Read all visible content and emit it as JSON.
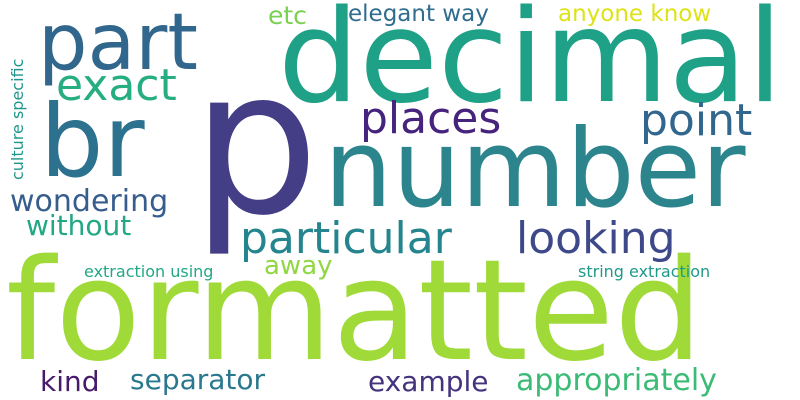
{
  "words": [
    {
      "text": "p",
      "color": "#433e85",
      "orientation": "horizontal"
    },
    {
      "text": "decimal",
      "color": "#1fa187",
      "orientation": "horizontal"
    },
    {
      "text": "formatted",
      "color": "#a0da39",
      "orientation": "horizontal"
    },
    {
      "text": "number",
      "color": "#2c858d",
      "orientation": "horizontal"
    },
    {
      "text": "br",
      "color": "#2c728e",
      "orientation": "horizontal"
    },
    {
      "text": "part",
      "color": "#31668d",
      "orientation": "horizontal"
    },
    {
      "text": "exact",
      "color": "#26ad81",
      "orientation": "horizontal"
    },
    {
      "text": "places",
      "color": "#46247e",
      "orientation": "horizontal"
    },
    {
      "text": "point",
      "color": "#31678e",
      "orientation": "horizontal"
    },
    {
      "text": "particular",
      "color": "#25858e",
      "orientation": "horizontal"
    },
    {
      "text": "looking",
      "color": "#3e4989",
      "orientation": "horizontal"
    },
    {
      "text": "wondering",
      "color": "#365d8d",
      "orientation": "horizontal"
    },
    {
      "text": "without",
      "color": "#22a884",
      "orientation": "horizontal"
    },
    {
      "text": "away",
      "color": "#90d743",
      "orientation": "horizontal"
    },
    {
      "text": "etc",
      "color": "#7ad151",
      "orientation": "horizontal"
    },
    {
      "text": "elegant way",
      "color": "#2f6c8e",
      "orientation": "horizontal"
    },
    {
      "text": "anyone know",
      "color": "#dde318",
      "orientation": "horizontal"
    },
    {
      "text": "culture specific",
      "color": "#1f968b",
      "orientation": "vertical"
    },
    {
      "text": "extraction using",
      "color": "#22a884",
      "orientation": "horizontal"
    },
    {
      "text": "string extraction",
      "color": "#1f9a8a",
      "orientation": "horizontal"
    },
    {
      "text": "kind",
      "color": "#481a6c",
      "orientation": "horizontal"
    },
    {
      "text": "separator",
      "color": "#2a788e",
      "orientation": "horizontal"
    },
    {
      "text": "example",
      "color": "#46337e",
      "orientation": "horizontal"
    },
    {
      "text": "appropriately",
      "color": "#3bbb75",
      "orientation": "horizontal"
    },
    {
      "text": "",
      "color": "#440154",
      "orientation": "horizontal"
    }
  ]
}
